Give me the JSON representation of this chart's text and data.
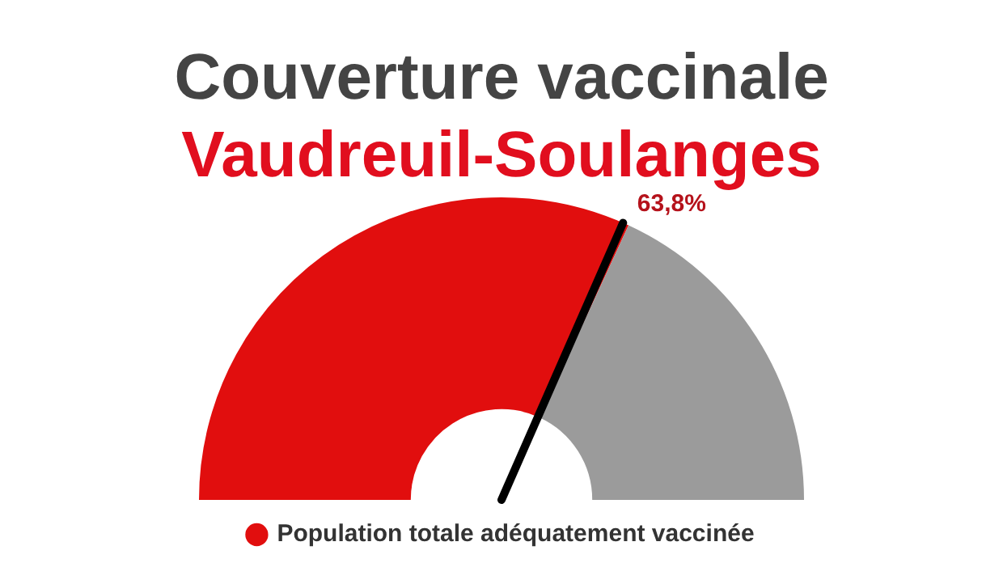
{
  "chart_data": {
    "type": "donut",
    "title": "Couverture vaccinale",
    "subtitle": "Vaudreuil-Soulanges",
    "categories": [
      "Population totale adéquatement vaccinée",
      null
    ],
    "values": [
      63.8,
      36.2
    ],
    "colors": [
      "#e10e0e",
      "#9b9b9b"
    ],
    "value_labels": [
      "63,8%",
      null
    ],
    "needle": "Population totale adéquatement vaccinée",
    "legend": "bottom"
  }
}
